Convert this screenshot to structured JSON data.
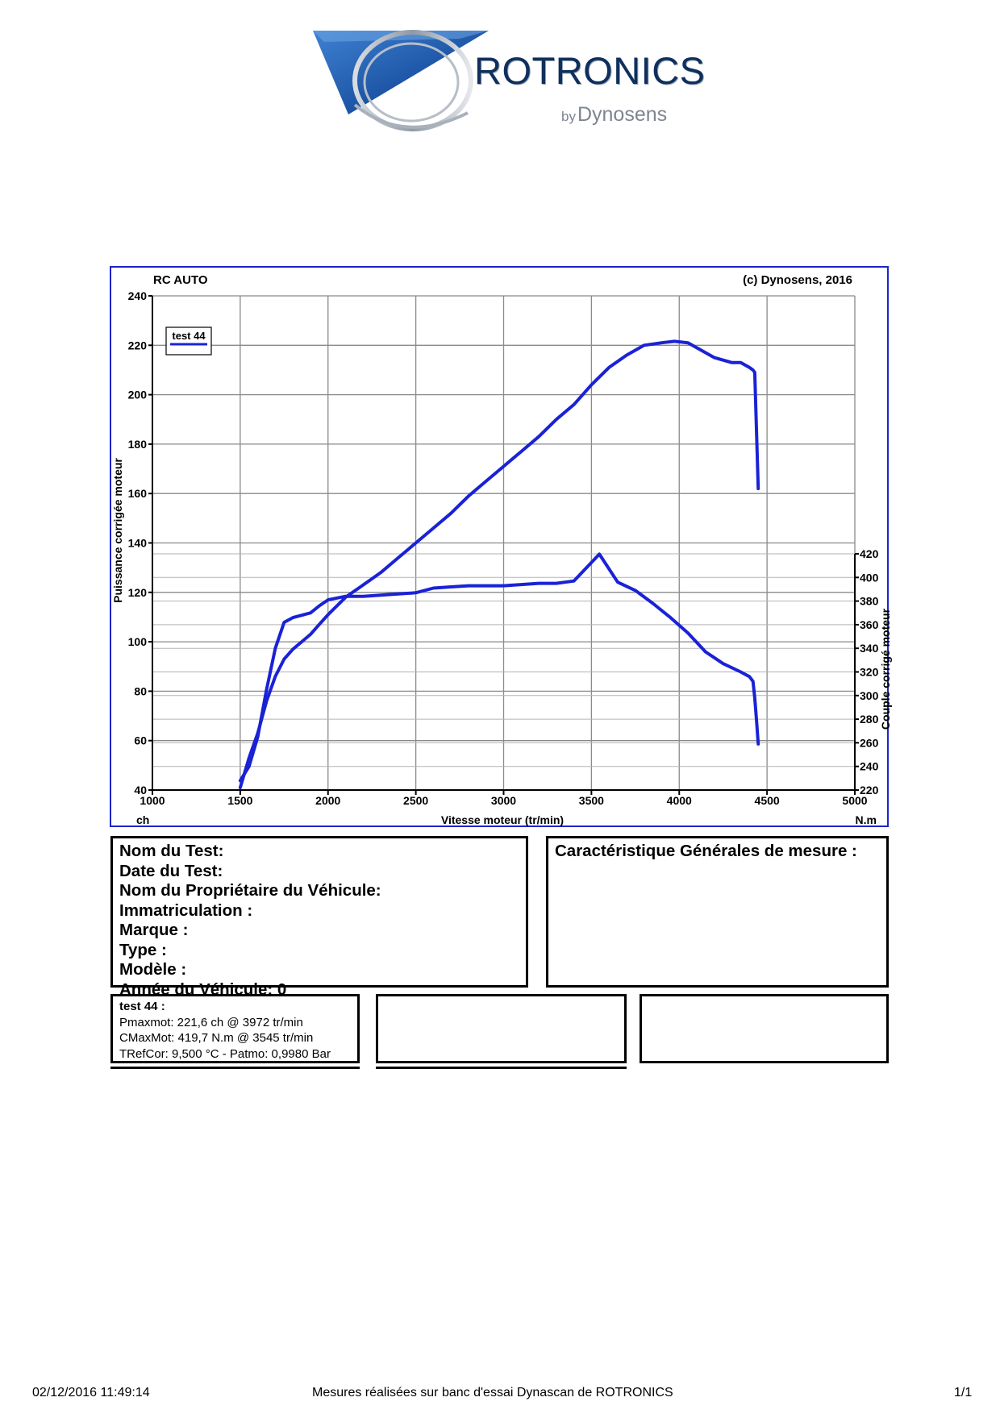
{
  "logo": {
    "brand": "ROTRONICS",
    "sub_by": "by",
    "sub_name": "Dynosens",
    "colors": {
      "triangle": "#1f57a8",
      "text": "#0f2f5d",
      "swirl": "#8f9aa6"
    }
  },
  "chart": {
    "header_left": "RC AUTO",
    "header_right": "(c) Dynosens, 2016",
    "x_label": "Vitesse moteur (tr/min)",
    "x_unit_left": "ch",
    "x_unit_right": "N.m",
    "y_left_label": "Puissance corrigée moteur",
    "y_right_label": "Couple corrigé moteur",
    "legend_label": "test 44",
    "line_color": "#1a22d6",
    "frame_color": "#1d24c9"
  },
  "chart_data": {
    "type": "line",
    "x_axis": {
      "min": 1000,
      "max": 5000,
      "ticks": [
        1000,
        1500,
        2000,
        2500,
        3000,
        3500,
        4000,
        4500,
        5000
      ]
    },
    "y_left_axis": {
      "min": 40,
      "max": 240,
      "ticks": [
        40,
        60,
        80,
        100,
        120,
        140,
        160,
        180,
        200,
        220,
        240
      ]
    },
    "y_right_axis": {
      "min": 220,
      "max": 420,
      "ticks": [
        220,
        240,
        260,
        280,
        300,
        320,
        340,
        360,
        380,
        400,
        420
      ]
    },
    "grid": true,
    "legend_position": "top-left",
    "series": [
      {
        "name": "test 44",
        "axis": "left",
        "x": [
          1500,
          1550,
          1600,
          1650,
          1700,
          1750,
          1800,
          1850,
          1900,
          1950,
          2000,
          2100,
          2200,
          2300,
          2400,
          2500,
          2600,
          2700,
          2800,
          2900,
          3000,
          3100,
          3200,
          3300,
          3400,
          3500,
          3600,
          3700,
          3800,
          3900,
          3972,
          4050,
          4100,
          4150,
          4200,
          4300,
          4350,
          4400,
          4420,
          4430,
          4440,
          4450
        ],
        "y": [
          41,
          53,
          63,
          76,
          86,
          93,
          97,
          100,
          103,
          107,
          111,
          118,
          123,
          128,
          134,
          140,
          146,
          152,
          159,
          165,
          171,
          177,
          183,
          190,
          196,
          204,
          211,
          216,
          220,
          221,
          221.6,
          221,
          219,
          217,
          215,
          213,
          213,
          211,
          210,
          209,
          185,
          162
        ]
      },
      {
        "name": "test 44",
        "axis": "right",
        "x": [
          1500,
          1550,
          1600,
          1650,
          1700,
          1750,
          1800,
          1850,
          1900,
          1950,
          2000,
          2100,
          2200,
          2300,
          2400,
          2500,
          2600,
          2700,
          2800,
          2900,
          3000,
          3100,
          3200,
          3300,
          3400,
          3545,
          3650,
          3750,
          3850,
          3950,
          4050,
          4150,
          4250,
          4350,
          4400,
          4420,
          4430,
          4440,
          4450
        ],
        "y": [
          228,
          240,
          265,
          305,
          340,
          362,
          366,
          368,
          370,
          376,
          381,
          384,
          384,
          385,
          386,
          387,
          391,
          392,
          393,
          393,
          393,
          394,
          395,
          395,
          397,
          419.7,
          396,
          389,
          378,
          366,
          353,
          337,
          327,
          320,
          316,
          312,
          298,
          279,
          259
        ]
      }
    ]
  },
  "info": {
    "test_name_label": "Nom du Test:",
    "date_label": "Date du Test:",
    "owner_label": "Nom du Propriétaire du Véhicule:",
    "registration_label": "Immatriculation :",
    "brand_label": "Marque :",
    "type_label": "Type :",
    "model_label": "Modèle :",
    "year_label": "Année du Véhicule: 0"
  },
  "carac": {
    "title": "Caractéristique Générales de mesure :"
  },
  "results": {
    "title": "test 44 :",
    "pmax": "Pmaxmot: 221,6 ch @ 3972 tr/min",
    "cmax": "CMaxMot: 419,7 N.m @ 3545 tr/min",
    "tref": "TRefCor: 9,500 °C - Patmo: 0,9980 Bar"
  },
  "footer": {
    "datetime": "02/12/2016 11:49:14",
    "caption": "Mesures réalisées sur banc d'essai Dynascan de ROTRONICS",
    "page": "1/1"
  }
}
